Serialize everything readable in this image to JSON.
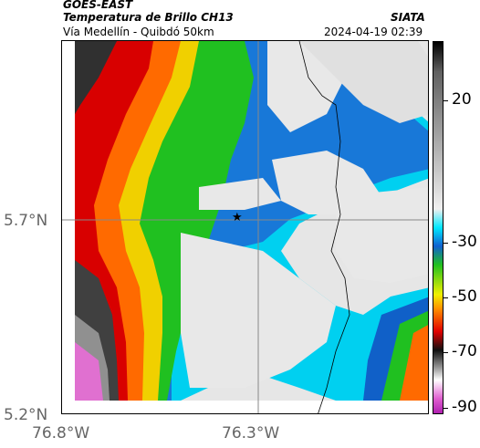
{
  "header": {
    "satellite": "GOES-EAST",
    "product": "Temperatura de Brillo CH13",
    "organization": "SIATA",
    "route": "Vía Medellín - Quibdó 50km",
    "timestamp": "2024-04-19 02:39"
  },
  "map": {
    "lat_labels": [
      "5.7°N",
      "5.2°N"
    ],
    "lon_labels": [
      "76.8°W",
      "76.3°W"
    ],
    "marker_icon": "star-icon",
    "colors": {
      "cold_white": "#e8e8e8",
      "cyan": "#00d8f0",
      "blue": "#1060c8",
      "green": "#20c020",
      "yellow": "#f0f000",
      "orange": "#ff8c00",
      "red": "#e00000",
      "dark": "#202020",
      "magenta": "#e060d0"
    }
  },
  "colorbar": {
    "labels": [
      "20",
      "-30",
      "-50",
      "-70",
      "-90"
    ]
  }
}
